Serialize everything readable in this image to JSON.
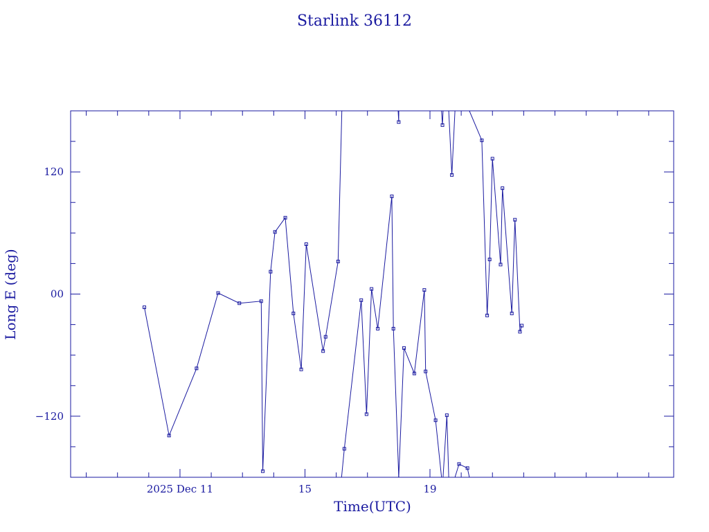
{
  "chart_data": {
    "type": "line",
    "title": "Starlink 36112",
    "xlabel": "Time(UTC)",
    "ylabel": "Long E (deg)",
    "xlim": [
      7.5,
      26.8
    ],
    "ylim": [
      -180,
      180
    ],
    "x_ticks": [
      {
        "value": 11,
        "label": "2025 Dec 11"
      },
      {
        "value": 15,
        "label": "15"
      },
      {
        "value": 19,
        "label": "19"
      }
    ],
    "x_minor_ticks": [
      8,
      9,
      10,
      11,
      12,
      13,
      14,
      15,
      16,
      17,
      18,
      19,
      20,
      21,
      22,
      23,
      24,
      25,
      26
    ],
    "y_ticks": [
      {
        "value": -120,
        "label": "−120"
      },
      {
        "value": 0,
        "label": "00"
      },
      {
        "value": 120,
        "label": "120"
      }
    ],
    "y_minor_ticks": [
      -150,
      -120,
      -90,
      -60,
      -30,
      0,
      30,
      60,
      90,
      120,
      150
    ],
    "grid": false,
    "series": [
      {
        "values": [
          [
            9.86,
            -13
          ],
          [
            10.65,
            -139
          ],
          [
            11.53,
            -73
          ],
          [
            12.22,
            1
          ],
          [
            12.9,
            -9
          ],
          [
            13.6,
            -7
          ],
          [
            13.65,
            -174
          ],
          [
            13.9,
            22
          ],
          [
            14.04,
            61
          ],
          [
            14.37,
            75
          ],
          [
            14.63,
            -19
          ],
          [
            14.88,
            -74
          ],
          [
            15.04,
            49
          ],
          [
            15.58,
            -56
          ],
          [
            15.66,
            -42
          ],
          [
            16.06,
            32
          ],
          [
            16.18,
            180
          ]
        ]
      },
      {
        "values": [
          [
            16.17,
            -180
          ],
          [
            16.26,
            -152
          ],
          [
            16.8,
            -6
          ],
          [
            16.97,
            -118
          ],
          [
            17.13,
            5
          ],
          [
            17.33,
            -34
          ],
          [
            17.78,
            96
          ],
          [
            17.83,
            -34
          ],
          [
            18.0,
            -180
          ]
        ]
      },
      {
        "values": [
          [
            17.98,
            180
          ],
          [
            18.0,
            169
          ],
          [
            18.0,
            180
          ]
        ]
      },
      {
        "values": [
          [
            18.0,
            -180
          ],
          [
            18.17,
            -53
          ],
          [
            18.5,
            -78
          ],
          [
            18.82,
            4
          ],
          [
            18.86,
            -76
          ],
          [
            19.18,
            -124
          ],
          [
            19.37,
            -180
          ]
        ]
      },
      {
        "values": [
          [
            19.37,
            180
          ],
          [
            19.4,
            166
          ],
          [
            19.42,
            180
          ]
        ]
      },
      {
        "values": [
          [
            19.42,
            -180
          ],
          [
            19.54,
            -119
          ],
          [
            19.6,
            -180
          ]
        ]
      },
      {
        "values": [
          [
            19.6,
            180
          ],
          [
            19.7,
            117
          ],
          [
            19.8,
            180
          ]
        ]
      },
      {
        "values": [
          [
            19.8,
            -180
          ],
          [
            19.93,
            -167
          ],
          [
            20.2,
            -171
          ],
          [
            20.26,
            -180
          ]
        ]
      },
      {
        "values": [
          [
            20.26,
            180
          ],
          [
            20.66,
            151
          ],
          [
            20.83,
            -21
          ],
          [
            20.91,
            34
          ],
          [
            21.0,
            133
          ],
          [
            21.26,
            29
          ],
          [
            21.32,
            104
          ],
          [
            21.62,
            -19
          ],
          [
            21.72,
            73
          ],
          [
            21.88,
            -37
          ],
          [
            21.94,
            -31
          ]
        ]
      }
    ]
  }
}
